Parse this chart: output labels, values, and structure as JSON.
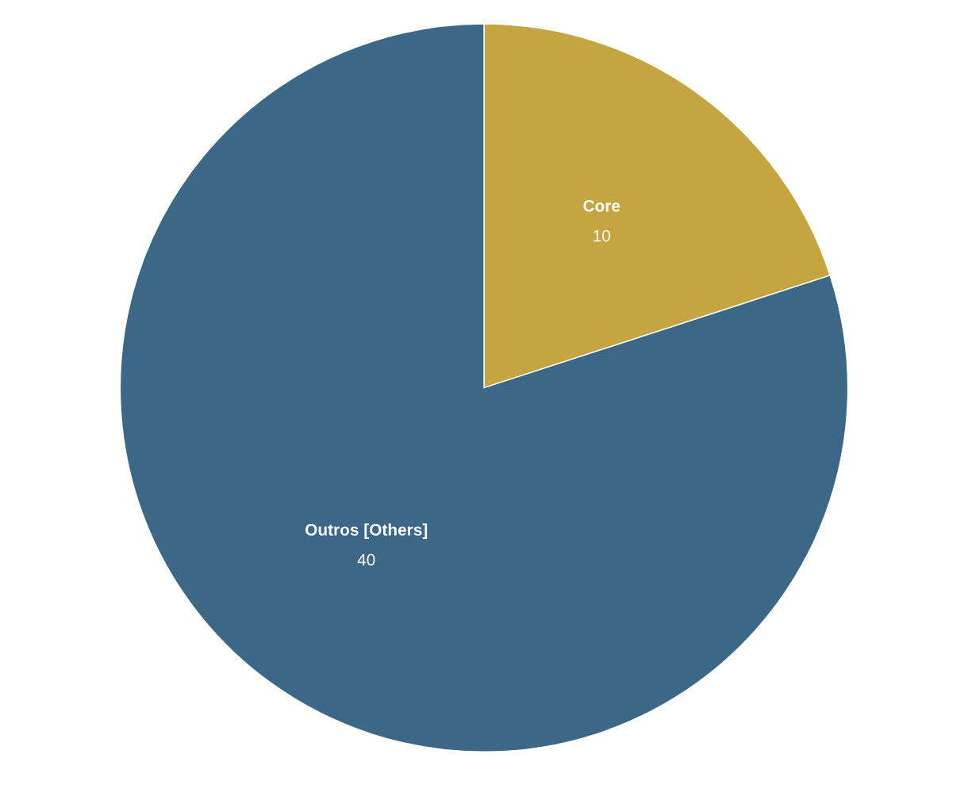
{
  "chart_data": {
    "type": "pie",
    "categories": [
      "Core",
      "Outros [Others]"
    ],
    "values": [
      10,
      40
    ],
    "colors": [
      "#c4a540",
      "#3d6787"
    ],
    "data_labels": true,
    "legend": false
  }
}
